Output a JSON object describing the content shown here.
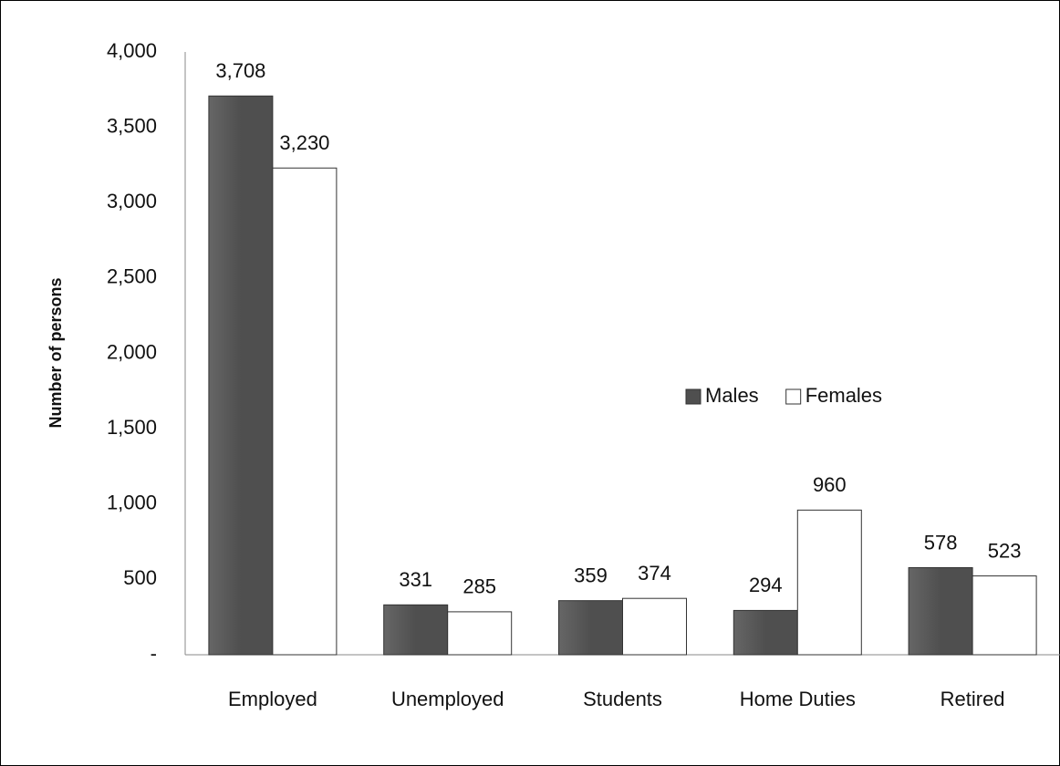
{
  "chart_data": {
    "type": "bar",
    "y_label": "Number of persons",
    "categories": [
      "Employed",
      "Unemployed",
      "Students",
      "Home Duties",
      "Retired"
    ],
    "series": [
      {
        "name": "Males",
        "color": "#4f4f4f",
        "values": [
          3708,
          331,
          359,
          294,
          578
        ],
        "value_labels": [
          "3,708",
          "331",
          "359",
          "294",
          "578"
        ]
      },
      {
        "name": "Females",
        "color": "#ffffff",
        "values": [
          3230,
          285,
          374,
          960,
          523
        ],
        "value_labels": [
          "3,230",
          "285",
          "374",
          "960",
          "523"
        ]
      }
    ],
    "ylim": [
      0,
      4000
    ],
    "yticks": [
      {
        "value": 0,
        "label": "-"
      },
      500,
      {
        "value": 1000,
        "label": "1,000"
      },
      {
        "value": 1500,
        "label": "1,500"
      },
      {
        "value": 2000,
        "label": "2,000"
      },
      {
        "value": 2500,
        "label": "2,500"
      },
      {
        "value": 3000,
        "label": "3,000"
      },
      {
        "value": 3500,
        "label": "3,500"
      },
      {
        "value": 4000,
        "label": "4,000"
      }
    ],
    "grid": false,
    "legend": "center-right"
  }
}
